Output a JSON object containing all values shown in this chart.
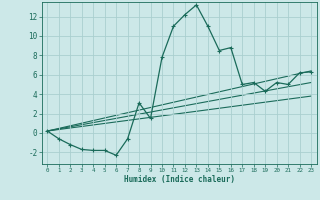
{
  "xlabel": "Humidex (Indice chaleur)",
  "bg_color": "#cce8e8",
  "grid_color": "#aacfcf",
  "line_color": "#1a6b5a",
  "xlim": [
    -0.5,
    23.5
  ],
  "ylim": [
    -3.2,
    13.5
  ],
  "xticks": [
    0,
    1,
    2,
    3,
    4,
    5,
    6,
    7,
    8,
    9,
    10,
    11,
    12,
    13,
    14,
    15,
    16,
    17,
    18,
    19,
    20,
    21,
    22,
    23
  ],
  "yticks": [
    -2,
    0,
    2,
    4,
    6,
    8,
    10,
    12
  ],
  "curve1_x": [
    0,
    1,
    2,
    3,
    4,
    5,
    6,
    7,
    8,
    9,
    10,
    11,
    12,
    13,
    14,
    15,
    16,
    17,
    18,
    19,
    20,
    21,
    22,
    23
  ],
  "curve1_y": [
    0.2,
    -0.6,
    -1.2,
    -1.7,
    -1.8,
    -1.8,
    -2.3,
    -0.6,
    3.1,
    1.5,
    7.8,
    11.0,
    12.2,
    13.2,
    11.0,
    8.5,
    8.8,
    5.0,
    5.2,
    4.3,
    5.2,
    5.0,
    6.2,
    6.3
  ],
  "line1_x": [
    0,
    23
  ],
  "line1_y": [
    0.2,
    3.8
  ],
  "line2_x": [
    0,
    23
  ],
  "line2_y": [
    0.2,
    5.2
  ],
  "line3_x": [
    0,
    23
  ],
  "line3_y": [
    0.2,
    6.4
  ]
}
